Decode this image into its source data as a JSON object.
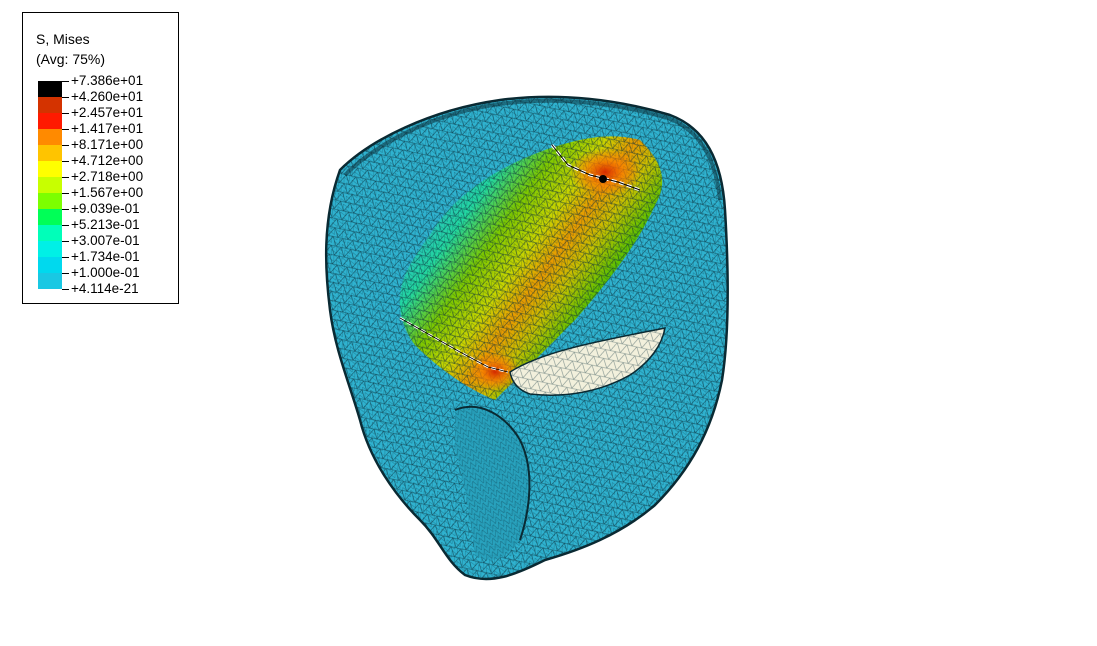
{
  "legend": {
    "variable": "S, Mises",
    "averaging": "(Avg: 75%)",
    "levels": [
      {
        "label": "+7.386e+01",
        "color": "#000000"
      },
      {
        "label": "+4.260e+01",
        "color": "#d43300"
      },
      {
        "label": "+2.457e+01",
        "color": "#ff1a00"
      },
      {
        "label": "+1.417e+01",
        "color": "#ff8a00"
      },
      {
        "label": "+8.171e+00",
        "color": "#ffc400"
      },
      {
        "label": "+4.712e+00",
        "color": "#ffff00"
      },
      {
        "label": "+2.718e+00",
        "color": "#c8ff00"
      },
      {
        "label": "+1.567e+00",
        "color": "#7cff00"
      },
      {
        "label": "+9.039e-01",
        "color": "#00ff57"
      },
      {
        "label": "+5.213e-01",
        "color": "#00ffb9"
      },
      {
        "label": "+3.007e-01",
        "color": "#00f0e6"
      },
      {
        "label": "+1.734e-01",
        "color": "#00d9ee"
      },
      {
        "label": "+1.000e-01",
        "color": "#19c8e3"
      },
      {
        "label": "+4.114e-21",
        "color": "#22c4e6"
      }
    ]
  },
  "model": {
    "base_color": "#2fb2cf",
    "mesh_color": "#0a2f3a",
    "cut_color": "#f2f0dc"
  }
}
